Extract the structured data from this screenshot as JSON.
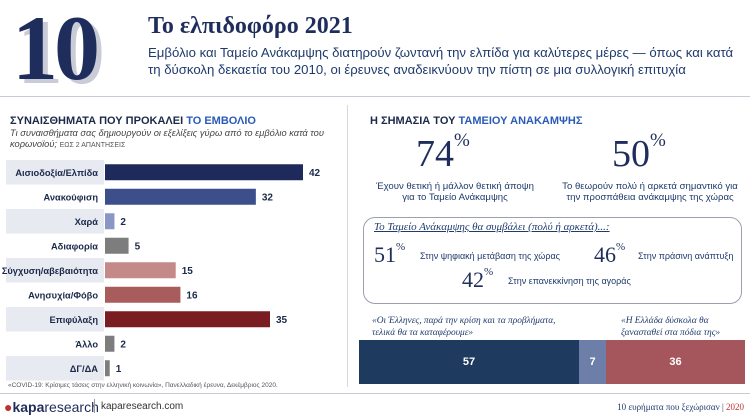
{
  "header": {
    "number": "10",
    "title": "Το ελπιδοφόρο 2021",
    "subtitle": "Εμβόλιο και Ταμείο Ανάκαμψης διατηρούν ζωντανή την ελπίδα για καλύτερες μέρες — όπως και κατά τη δύσκολη δεκαετία του 2010, οι έρευνες αναδεικνύουν την πίστη σε μια συλλογική επιτυχία"
  },
  "left": {
    "heading_main": "ΣΥΝΑΙΣΘΗΜΑΤΑ ΠΟΥ ΠΡΟΚΑΛΕΙ ",
    "heading_highlight": "ΤΟ ΕΜΒΟΛΙΟ",
    "question": "Τι συναισθήματα σας δημιουργούν οι εξελίξεις γύρω από το εμβόλιο κατά του κορωνοϊού;",
    "note": "ΕΩΣ 2 ΑΠΑΝΤΗΣΕΙΣ"
  },
  "chart_data": {
    "type": "bar",
    "orientation": "horizontal",
    "categories": [
      "Αισιοδοξία/Ελπίδα",
      "Ανακούφιση",
      "Χαρά",
      "Αδιαφορία",
      "Σύγχυση/αβεβαιότητα",
      "Ανησυχία/Φόβο",
      "Επιφύλαξη",
      "Άλλο",
      "ΔΓ/ΔΑ"
    ],
    "values": [
      42,
      32,
      2,
      5,
      15,
      16,
      35,
      2,
      1
    ],
    "colors": [
      "#1f2a5c",
      "#3d4f8a",
      "#8a97c4",
      "#7d7d7d",
      "#c48a8a",
      "#a85c5c",
      "#7a1d22",
      "#7d7d7d",
      "#7d7d7d"
    ],
    "xlim": [
      0,
      42
    ]
  },
  "right": {
    "heading_main": "Η ΣΗΜΑΣΙΑ ΤΟΥ ",
    "heading_highlight": "ΤΑΜΕΙΟΥ ΑΝΑΚΑΜΨΗΣ",
    "stat1_value": "74",
    "stat1_unit": "%",
    "stat1_caption_line1": "Έχουν θετική ή μάλλον θετική άποψη",
    "stat1_caption_line2": "για το Ταμείο Ανάκαμψης",
    "stat2_value": "50",
    "stat2_unit": "%",
    "stat2_caption_line1": "Το θεωρούν πολύ ή αρκετά σημαντικό για",
    "stat2_caption_line2": "την προσπάθεια ανάκαμψης της χώρας",
    "box_title": "Το Ταμείο Ανάκαμψης θα συμβάλει (πολύ ή αρκετά)...:",
    "box_items": [
      {
        "value": "51",
        "unit": "%",
        "label": "Στην ψηφιακή μετάβαση της χώρας"
      },
      {
        "value": "46",
        "unit": "%",
        "label": "Στην πράσινη ανάπτυξη"
      },
      {
        "value": "42",
        "unit": "%",
        "label": "Στην επανεκκίνηση της αγοράς"
      }
    ],
    "quote_left": "«Οι Έλληνες, παρά την κρίση και τα προβλήματα, τελικά θα τα καταφέρουμε»",
    "quote_right": "«Η Ελλάδα δύσκολα θα ξανασταθεί στα πόδια της»",
    "stack": [
      {
        "label": "57",
        "value": 57,
        "color": "#1f3a5f"
      },
      {
        "label": "7",
        "value": 7,
        "color": "#6d7fa8"
      },
      {
        "label": "36",
        "value": 36,
        "color": "#a5555c"
      }
    ]
  },
  "footer": {
    "source": "«COVID-19: Κρίσιμες τάσεις στην ελληνική κοινωνία», Πανελλαδική έρευνα, Δεκέμβριος 2020.",
    "logo_a": "kapa",
    "logo_b": "research",
    "site": "kaparesearch.com",
    "right_text": "10 ευρήματα που ξεχώρισαν | ",
    "right_year": "2020"
  }
}
